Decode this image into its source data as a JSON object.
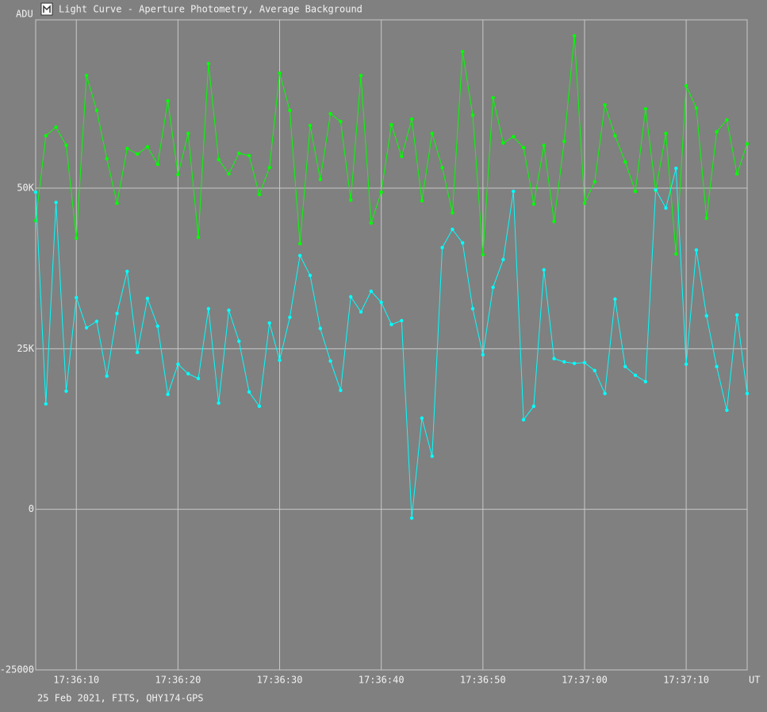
{
  "chart_data": {
    "type": "line",
    "title": "Light Curve - Aperture Photometry, Average Background",
    "y_label": "ADU",
    "x_label": "UT",
    "footer": "25 Feb 2021, FITS, QHY174-GPS",
    "x": [
      63366,
      63367,
      63368,
      63369,
      63370,
      63371,
      63372,
      63373,
      63374,
      63375,
      63376,
      63377,
      63378,
      63379,
      63380,
      63381,
      63382,
      63383,
      63384,
      63385,
      63386,
      63387,
      63388,
      63389,
      63390,
      63391,
      63392,
      63393,
      63394,
      63395,
      63396,
      63397,
      63398,
      63399,
      63400,
      63401,
      63402,
      63403,
      63404,
      63405,
      63406,
      63407,
      63408,
      63409,
      63410,
      63411,
      63412,
      63413,
      63414,
      63415,
      63416,
      63417,
      63418,
      63419,
      63420,
      63421,
      63422,
      63423,
      63424,
      63425,
      63426,
      63427,
      63428,
      63429,
      63430,
      63431,
      63432,
      63433,
      63434,
      63435,
      63436
    ],
    "series": [
      {
        "color": "#00ff00",
        "values": [
          44940,
          58150,
          59500,
          56670,
          42220,
          67530,
          62100,
          54570,
          47650,
          56170,
          55310,
          56420,
          53700,
          63580,
          52100,
          58520,
          42350,
          69380,
          54440,
          52220,
          55430,
          55060,
          49010,
          53210,
          67900,
          62100,
          41360,
          59750,
          51360,
          61600,
          60370,
          48150,
          67530,
          44570,
          49380,
          59880,
          54940,
          60740,
          48030,
          58520,
          53210,
          46170,
          71230,
          61360,
          39630,
          64070,
          57040,
          58020,
          56300,
          47530,
          56670,
          44810,
          57280,
          73700,
          47650,
          50990,
          62960,
          58150,
          54070,
          49500,
          62350,
          49630,
          58520,
          39750,
          65930,
          62470,
          45310,
          58770,
          60620,
          52220,
          56910
        ]
      },
      {
        "color": "#00ffff",
        "values": [
          49380,
          16420,
          47780,
          18400,
          32960,
          28270,
          29260,
          20740,
          30490,
          37040,
          24440,
          32840,
          28520,
          17900,
          22590,
          21110,
          20370,
          31230,
          16540,
          30990,
          26170,
          18270,
          16050,
          29010,
          23210,
          29880,
          39510,
          36420,
          28150,
          23090,
          18520,
          33090,
          30740,
          33950,
          32220,
          28770,
          29380,
          -1360,
          14200,
          8270,
          40740,
          43580,
          41480,
          31230,
          24070,
          34570,
          38890,
          49500,
          13950,
          16050,
          37280,
          23460,
          22960,
          22720,
          22840,
          21600,
          18020,
          32720,
          22220,
          20860,
          19880,
          49750,
          46910,
          53090,
          22590,
          40370,
          30120,
          22220,
          15430,
          30250,
          18020
        ]
      }
    ],
    "xlim": [
      63366,
      63436
    ],
    "xticks": [
      {
        "value": 63370,
        "label": "17:36:10"
      },
      {
        "value": 63380,
        "label": "17:36:20"
      },
      {
        "value": 63390,
        "label": "17:36:30"
      },
      {
        "value": 63400,
        "label": "17:36:40"
      },
      {
        "value": 63410,
        "label": "17:36:50"
      },
      {
        "value": 63420,
        "label": "17:37:00"
      },
      {
        "value": 63430,
        "label": "17:37:10"
      }
    ],
    "ylim": [
      -25000,
      76200
    ],
    "yticks": [
      -25000,
      0,
      {
        "value": 25000,
        "label": "25K"
      },
      {
        "value": 50000,
        "label": "50K"
      }
    ],
    "grid": true
  }
}
